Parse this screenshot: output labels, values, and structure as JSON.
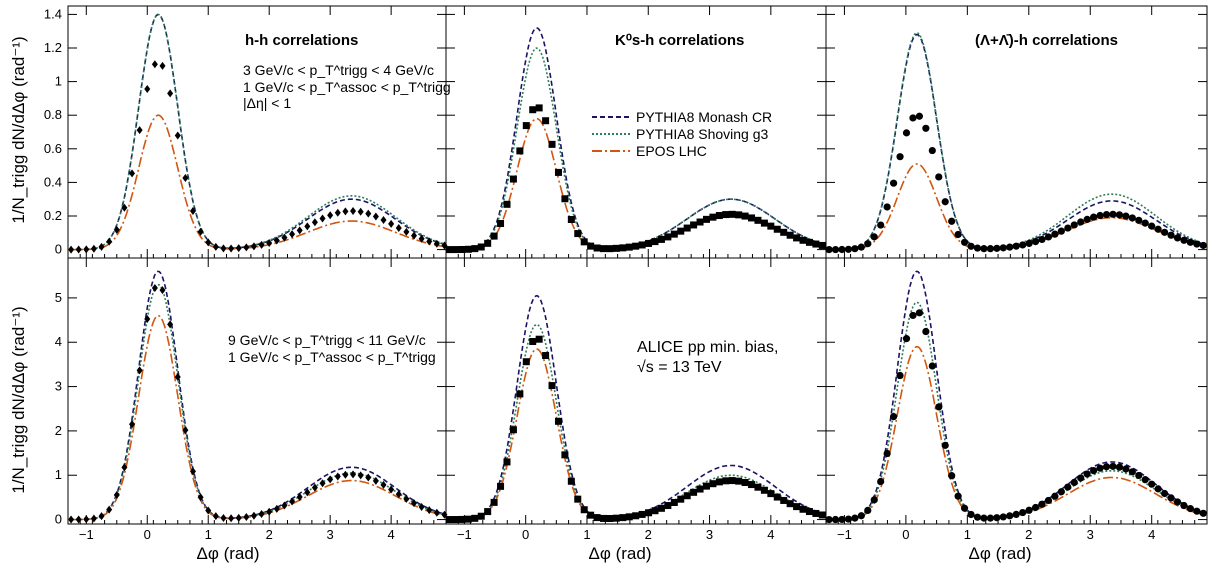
{
  "figure": {
    "ylabel_top": "1/N_trigg dN/dΔφ (rad⁻¹)",
    "ylabel_bottom": "1/N_trigg dN/dΔφ (rad⁻¹)",
    "xlabel": "Δφ (rad)",
    "legend": [
      "PYTHIA8 Monash CR",
      "PYTHIA8 Shoving g3",
      "EPOS LHC"
    ],
    "colors": {
      "monash": "#1b1464",
      "shoving": "#2e7d5b",
      "epos": "#d2560f",
      "data": "#000000"
    },
    "annotations": {
      "title_hh": "h-h correlations",
      "title_k0s": "K⁰s-h correlations",
      "title_lambda": "(Λ+Λ̄)-h correlations",
      "cut_top_1": "3 GeV/c < p_T^trigg < 4 GeV/c",
      "cut_top_2": "1 GeV/c < p_T^assoc < p_T^trigg",
      "cut_top_3": "|Δη| < 1",
      "cut_bottom_1": "9 GeV/c < p_T^trigg < 11 GeV/c",
      "cut_bottom_2": "1 GeV/c < p_T^assoc < p_T^trigg",
      "system_1": "ALICE pp min. bias,",
      "system_2": "√s = 13 TeV"
    }
  },
  "chart_data": [
    {
      "type": "line",
      "panel": "hh-low",
      "xlim": [
        -1.3,
        4.9
      ],
      "ylim": [
        -0.05,
        1.45
      ],
      "yticks": [
        0,
        0.2,
        0.4,
        0.6,
        0.8,
        1,
        1.2,
        1.4
      ],
      "xticks": [
        -1,
        0,
        1,
        2,
        3,
        4
      ],
      "series": [
        {
          "key": "monash",
          "near": 1.4,
          "away": 0.3
        },
        {
          "key": "shoving",
          "near": 1.4,
          "away": 0.32
        },
        {
          "key": "epos",
          "near": 0.8,
          "away": 0.17
        },
        {
          "key": "data",
          "near": 1.12,
          "away": 0.23
        }
      ]
    },
    {
      "type": "line",
      "panel": "k0s-low",
      "xlim": [
        -1.3,
        4.9
      ],
      "ylim": [
        -0.05,
        1.45
      ],
      "yticks": [
        0,
        0.2,
        0.4,
        0.6,
        0.8,
        1,
        1.2,
        1.4
      ],
      "xticks": [
        -1,
        0,
        1,
        2,
        3,
        4
      ],
      "series": [
        {
          "key": "monash",
          "near": 1.32,
          "away": 0.3
        },
        {
          "key": "shoving",
          "near": 1.2,
          "away": 0.3
        },
        {
          "key": "epos",
          "near": 0.78,
          "away": 0.2
        },
        {
          "key": "data",
          "near": 0.85,
          "away": 0.21
        }
      ]
    },
    {
      "type": "line",
      "panel": "lambda-low",
      "xlim": [
        -1.3,
        4.9
      ],
      "ylim": [
        -0.05,
        1.45
      ],
      "yticks": [
        0,
        0.2,
        0.4,
        0.6,
        0.8,
        1,
        1.2,
        1.4
      ],
      "xticks": [
        -1,
        0,
        1,
        2,
        3,
        4
      ],
      "series": [
        {
          "key": "monash",
          "near": 1.28,
          "away": 0.29
        },
        {
          "key": "shoving",
          "near": 1.29,
          "away": 0.33
        },
        {
          "key": "epos",
          "near": 0.51,
          "away": 0.19
        },
        {
          "key": "data",
          "near": 0.8,
          "away": 0.21
        }
      ]
    },
    {
      "type": "line",
      "panel": "hh-high",
      "xlim": [
        -1.3,
        4.9
      ],
      "ylim": [
        -0.1,
        5.9
      ],
      "yticks": [
        0,
        1,
        2,
        3,
        4,
        5
      ],
      "xticks": [
        -1,
        0,
        1,
        2,
        3,
        4
      ],
      "series": [
        {
          "key": "monash",
          "near": 5.6,
          "away": 1.18
        },
        {
          "key": "shoving",
          "near": 5.3,
          "away": 1.05
        },
        {
          "key": "epos",
          "near": 4.6,
          "away": 0.88
        },
        {
          "key": "data",
          "near": 5.3,
          "away": 1.02
        }
      ]
    },
    {
      "type": "line",
      "panel": "k0s-high",
      "xlim": [
        -1.3,
        4.9
      ],
      "ylim": [
        -0.1,
        5.9
      ],
      "yticks": [
        0,
        1,
        2,
        3,
        4,
        5
      ],
      "xticks": [
        -1,
        0,
        1,
        2,
        3,
        4
      ],
      "series": [
        {
          "key": "monash",
          "near": 5.05,
          "away": 1.22
        },
        {
          "key": "shoving",
          "near": 4.4,
          "away": 1.0
        },
        {
          "key": "epos",
          "near": 3.85,
          "away": 0.85
        },
        {
          "key": "data",
          "near": 4.1,
          "away": 0.88
        }
      ]
    },
    {
      "type": "line",
      "panel": "lambda-high",
      "xlim": [
        -1.3,
        4.9
      ],
      "ylim": [
        -0.1,
        5.9
      ],
      "yticks": [
        0,
        1,
        2,
        3,
        4,
        5
      ],
      "xticks": [
        -1,
        0,
        1,
        2,
        3,
        4
      ],
      "series": [
        {
          "key": "monash",
          "near": 5.6,
          "away": 1.3
        },
        {
          "key": "shoving",
          "near": 4.9,
          "away": 1.1
        },
        {
          "key": "epos",
          "near": 3.9,
          "away": 0.95
        },
        {
          "key": "data",
          "near": 4.7,
          "away": 1.2
        }
      ]
    }
  ]
}
